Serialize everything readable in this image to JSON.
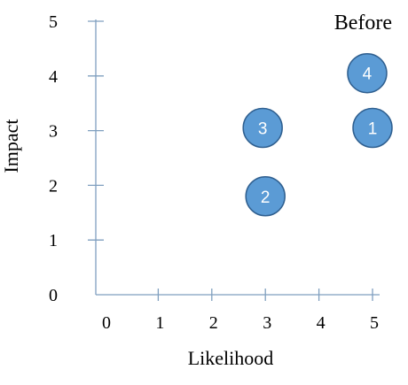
{
  "chart_data": {
    "type": "scatter",
    "title": "Before",
    "xlabel": "Likelihood",
    "ylabel": "Impact",
    "xlim": [
      0,
      5
    ],
    "ylim": [
      0,
      5
    ],
    "x_ticks": [
      0,
      1,
      2,
      3,
      4,
      5
    ],
    "y_ticks": [
      0,
      1,
      2,
      3,
      4,
      5
    ],
    "grid": false,
    "points": [
      {
        "label": "1",
        "x": 5.0,
        "y": 3.05
      },
      {
        "label": "2",
        "x": 3.0,
        "y": 1.8
      },
      {
        "label": "3",
        "x": 2.95,
        "y": 3.05
      },
      {
        "label": "4",
        "x": 4.9,
        "y": 4.05
      }
    ],
    "marker_color": "#5b9bd5",
    "marker_edge_color": "#2f5f8f",
    "axis_color": "#7f9fbf"
  }
}
